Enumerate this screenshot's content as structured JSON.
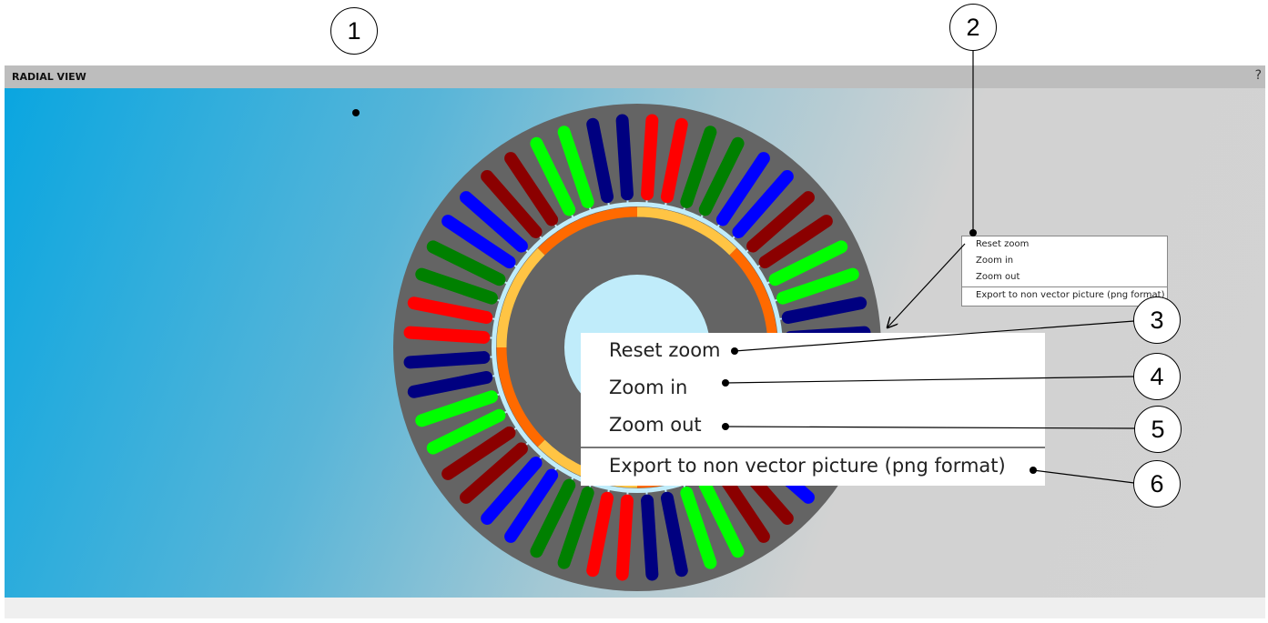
{
  "panel": {
    "title": "RADIAL VIEW",
    "help_label": "?"
  },
  "context_menu": {
    "items": [
      "Reset zoom",
      "Zoom in",
      "Zoom out",
      "Export to non vector picture (png format)"
    ]
  },
  "callouts": [
    "1",
    "2",
    "3",
    "4",
    "5",
    "6"
  ],
  "motor": {
    "slot_count": 48,
    "slot_color_sequence": [
      "#ff0000",
      "#ff0000",
      "#008000",
      "#008000",
      "#0000ff",
      "#0000ff",
      "#8b0000",
      "#8b0000",
      "#00ff00",
      "#00ff00",
      "#000080",
      "#000080"
    ],
    "pole_count": 8,
    "pole_colors": [
      "#ffc444",
      "#ff6a00"
    ],
    "stator_color": "#646464",
    "bore_color": "#c0ecfa",
    "airgap_color": "#c0ecfa"
  }
}
